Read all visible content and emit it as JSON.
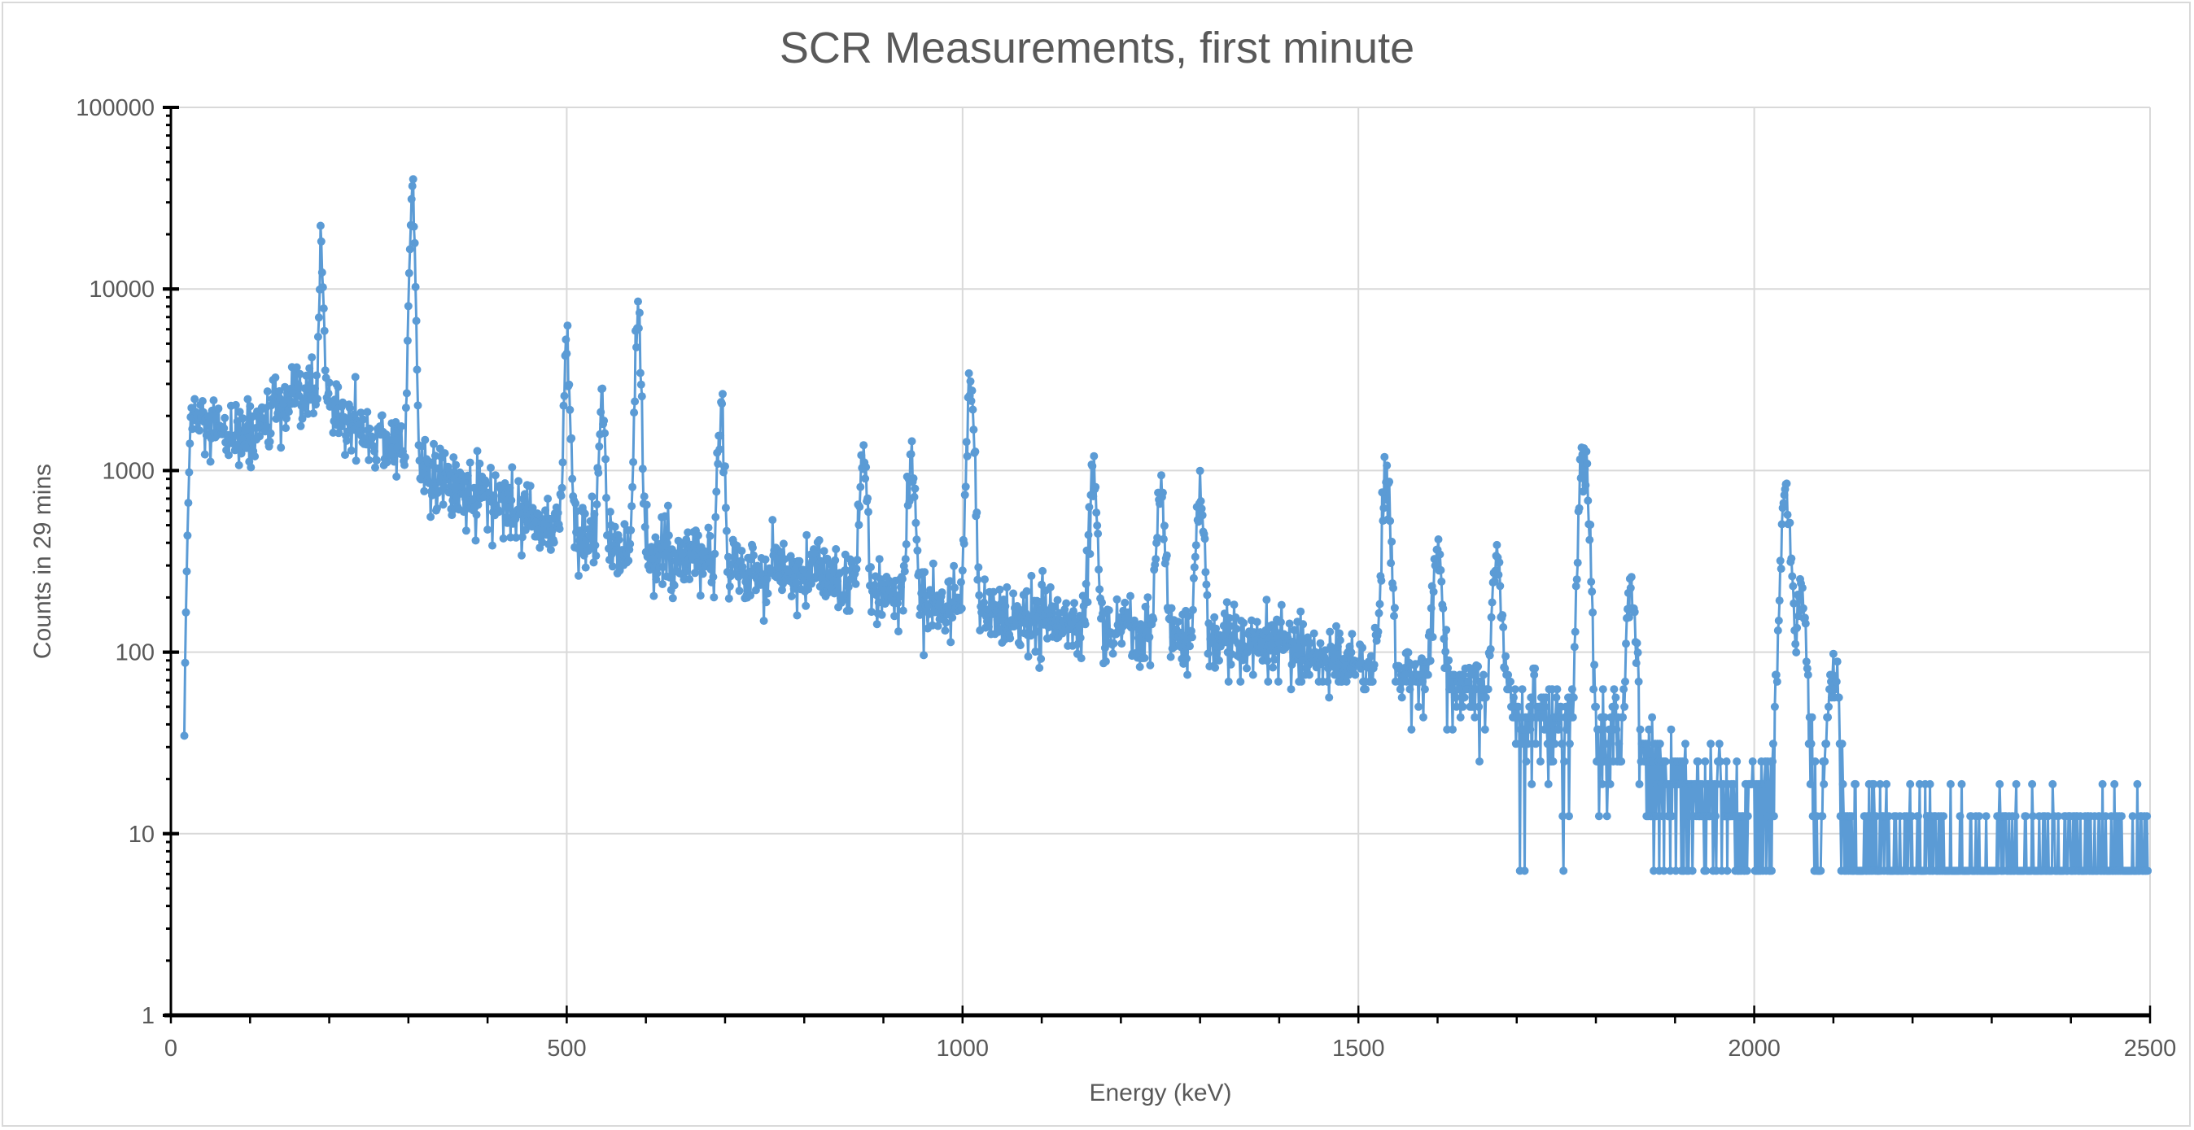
{
  "chart_data": {
    "type": "scatter",
    "mode": "lines+markers",
    "title": "SCR Measurements, first minute",
    "xlabel": "Energy (keV)",
    "ylabel": "Counts in 29 mins",
    "xlim": [
      0,
      2500
    ],
    "ylim": [
      1,
      100000
    ],
    "yscale": "log",
    "grid": true,
    "legend": "none",
    "x_ticks": [
      "0",
      "500",
      "1000",
      "1500",
      "2000",
      "2500"
    ],
    "y_ticks": [
      "1",
      "10",
      "100",
      "1000",
      "10000",
      "100000"
    ],
    "series_color": "#5b9bd5",
    "series": [
      {
        "name": "Counts",
        "x_start": 17,
        "x_step": 1,
        "quantum": 6.25,
        "background_step_keV": 25,
        "background": [
          6,
          2000,
          1600,
          1500,
          1600,
          1900,
          2300,
          2500,
          2300,
          1800,
          1600,
          1400,
          1300,
          900,
          800,
          750,
          700,
          600,
          550,
          500,
          500,
          400,
          380,
          370,
          350,
          330,
          320,
          300,
          300,
          290,
          280,
          280,
          270,
          260,
          240,
          230,
          210,
          200,
          190,
          180,
          180,
          170,
          160,
          150,
          150,
          140,
          140,
          130,
          130,
          120,
          120,
          120,
          120,
          115,
          110,
          110,
          110,
          100,
          95,
          90,
          90,
          85,
          80,
          75,
          70,
          65,
          60,
          55,
          50,
          45,
          42,
          40,
          35,
          30,
          25,
          22,
          18,
          15,
          14,
          13,
          12,
          11,
          9,
          8,
          8,
          7,
          7,
          7,
          7,
          7,
          6.5,
          6.5,
          6.5,
          6.5,
          6.5,
          6.5,
          6.5,
          6.5,
          6.5,
          6.5,
          6.5
        ],
        "peaks": [
          [
            190,
            13000
          ],
          [
            305,
            37000
          ],
          [
            500,
            4500
          ],
          [
            545,
            2000
          ],
          [
            590,
            6600
          ],
          [
            695,
            2000
          ],
          [
            875,
            1000
          ],
          [
            935,
            1000
          ],
          [
            1010,
            2900
          ],
          [
            1165,
            900
          ],
          [
            1250,
            700
          ],
          [
            1300,
            500
          ],
          [
            1535,
            780
          ],
          [
            1600,
            300
          ],
          [
            1675,
            280
          ],
          [
            1785,
            1200
          ],
          [
            1845,
            180
          ],
          [
            2040,
            700
          ],
          [
            2060,
            200
          ],
          [
            2100,
            80
          ]
        ]
      }
    ]
  }
}
